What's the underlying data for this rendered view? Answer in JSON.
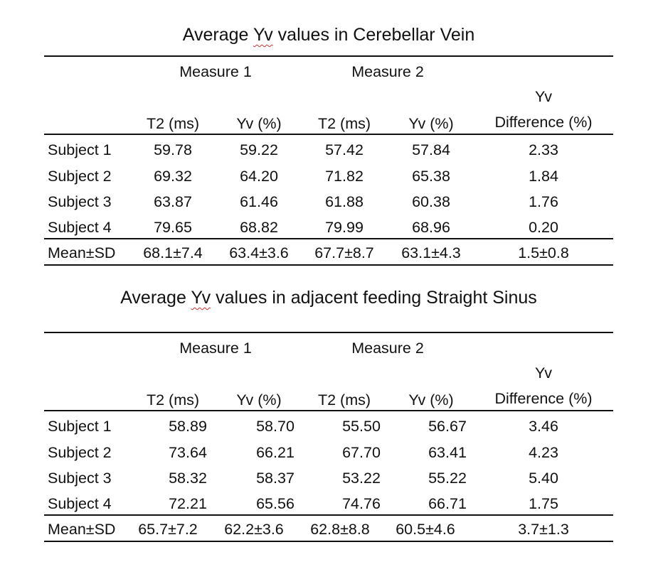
{
  "tables": [
    {
      "title_prefix": "Average ",
      "title_flag": "Yv",
      "title_suffix": " values in Cerebellar Vein",
      "measure_labels": [
        "Measure 1",
        "Measure 2"
      ],
      "diff_header_top": "Yv",
      "columns": [
        "T2 (ms)",
        "Yv (%)",
        "T2 (ms)",
        "Yv (%)",
        "Difference (%)"
      ],
      "rows": [
        {
          "label": "Subject 1",
          "values": [
            "59.78",
            "59.22",
            "57.42",
            "57.84",
            "2.33"
          ]
        },
        {
          "label": "Subject 2",
          "values": [
            "69.32",
            "64.20",
            "71.82",
            "65.38",
            "1.84"
          ]
        },
        {
          "label": "Subject 3",
          "values": [
            "63.87",
            "61.46",
            "61.88",
            "60.38",
            "1.76"
          ]
        },
        {
          "label": "Subject 4",
          "values": [
            "79.65",
            "68.82",
            "79.99",
            "68.96",
            "0.20"
          ]
        }
      ],
      "summary": {
        "label": "Mean±SD",
        "values": [
          "68.1±7.4",
          "63.4±3.6",
          "67.7±8.7",
          "63.1±4.3",
          "1.5±0.8"
        ]
      }
    },
    {
      "title_prefix": "Average ",
      "title_flag": "Yv",
      "title_suffix": " values in adjacent feeding Straight Sinus",
      "measure_labels": [
        "Measure 1",
        "Measure 2"
      ],
      "diff_header_top": "Yv",
      "columns": [
        "T2 (ms)",
        "Yv (%)",
        "T2 (ms)",
        "Yv (%)",
        "Difference (%)"
      ],
      "rows": [
        {
          "label": "Subject 1",
          "values": [
            "58.89",
            "58.70",
            "55.50",
            "56.67",
            "3.46"
          ]
        },
        {
          "label": "Subject 2",
          "values": [
            "73.64",
            "66.21",
            "67.70",
            "63.41",
            "4.23"
          ]
        },
        {
          "label": "Subject 3",
          "values": [
            "58.32",
            "58.37",
            "53.22",
            "55.22",
            "5.40"
          ]
        },
        {
          "label": "Subject 4",
          "values": [
            "72.21",
            "65.56",
            "74.76",
            "66.71",
            "1.75"
          ]
        }
      ],
      "summary": {
        "label": "Mean±SD",
        "values": [
          "65.7±7.2",
          "62.2±3.6",
          "62.8±8.8",
          "60.5±4.6",
          "3.7±1.3"
        ]
      }
    }
  ]
}
